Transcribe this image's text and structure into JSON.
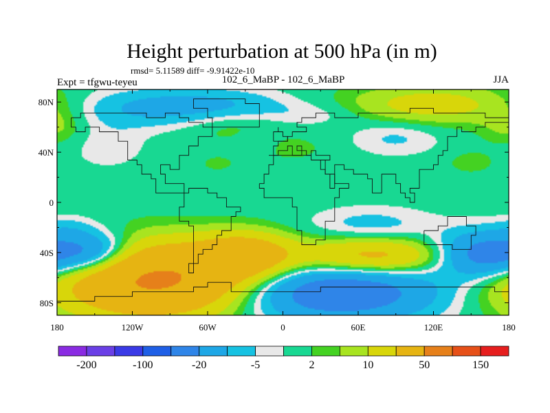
{
  "chart_data": {
    "type": "heatmap",
    "title": "Height perturbation at 500 hPa (in m)",
    "stats_text": "rmsd= 5.11589 diff= -9.91422e-10",
    "left_label": "Expt = tfgwu-teyeu",
    "center_label": "102_6_MaBP - 102_6_MaBP",
    "right_label": "JJA",
    "projection": "cylindrical equidistant",
    "x_range": [
      -180,
      180
    ],
    "y_range": [
      -90,
      90
    ],
    "x_ticks": [
      {
        "value": -180,
        "label": "180"
      },
      {
        "value": -120,
        "label": "120W"
      },
      {
        "value": -60,
        "label": "60W"
      },
      {
        "value": 0,
        "label": "0"
      },
      {
        "value": 60,
        "label": "60E"
      },
      {
        "value": 120,
        "label": "120E"
      },
      {
        "value": 180,
        "label": "180"
      }
    ],
    "y_ticks": [
      {
        "value": 80,
        "label": "80N"
      },
      {
        "value": 40,
        "label": "40N"
      },
      {
        "value": 0,
        "label": "0"
      },
      {
        "value": -40,
        "label": "40S"
      },
      {
        "value": -80,
        "label": "80S"
      }
    ],
    "colorbar": {
      "colors": [
        "#8a2be2",
        "#6a3fe6",
        "#3a3ae6",
        "#1f5fe6",
        "#2f85e8",
        "#1ea7e6",
        "#16c2e2",
        "#e8e8e8",
        "#18d892",
        "#44d222",
        "#a8e420",
        "#d8d60a",
        "#e6b412",
        "#e6801a",
        "#e65018",
        "#e61e1e"
      ],
      "labels": [
        {
          "after_box": 1,
          "text": "-200"
        },
        {
          "after_box": 3,
          "text": "-100"
        },
        {
          "after_box": 5,
          "text": "-20"
        },
        {
          "after_box": 7,
          "text": "-5"
        },
        {
          "after_box": 9,
          "text": "2"
        },
        {
          "after_box": 11,
          "text": "10"
        },
        {
          "after_box": 13,
          "text": "50"
        },
        {
          "after_box": 15,
          "text": "150"
        }
      ]
    },
    "field_blobs": [
      {
        "name": "south-pacific-high",
        "lon": -100,
        "lat": -62,
        "rlon": 55,
        "rlat": 20,
        "amp": 55
      },
      {
        "name": "south-atlantic-high",
        "lon": -30,
        "lat": -42,
        "rlon": 26,
        "rlat": 12,
        "amp": 28
      },
      {
        "name": "indian-ocean-high",
        "lon": 72,
        "lat": -43,
        "rlon": 42,
        "rlat": 10,
        "amp": 26
      },
      {
        "name": "southern-ocean-low",
        "lon": 40,
        "lat": -72,
        "rlon": 58,
        "rlat": 16,
        "amp": -32
      },
      {
        "name": "sw-pacific-low",
        "lon": 162,
        "lat": -42,
        "rlon": 28,
        "rlat": 13,
        "amp": -32
      },
      {
        "name": "se-pacific-low",
        "lon": -150,
        "lat": -41,
        "rlon": 22,
        "rlat": 12,
        "amp": -26
      },
      {
        "name": "midlat-south-low",
        "lon": 70,
        "lat": -18,
        "rlon": 35,
        "rlat": 10,
        "amp": -7
      },
      {
        "name": "east-pacific-south-low",
        "lon": -170,
        "lat": -20,
        "rlon": 15,
        "rlat": 7,
        "amp": -4
      },
      {
        "name": "north-pacific-low",
        "lon": -115,
        "lat": 75,
        "rlon": 42,
        "rlat": 11,
        "amp": -10
      },
      {
        "name": "europe-low",
        "lon": -50,
        "lat": 78,
        "rlon": 40,
        "rlat": 9,
        "amp": -9
      },
      {
        "name": "arctic-siberia-high",
        "lon": 120,
        "lat": 78,
        "rlon": 48,
        "rlat": 11,
        "amp": 14
      },
      {
        "name": "north-atlantic-high",
        "lon": -40,
        "lat": 60,
        "rlon": 26,
        "rlat": 9,
        "amp": 4
      },
      {
        "name": "asia-low",
        "lon": 90,
        "lat": 52,
        "rlon": 25,
        "rlat": 10,
        "amp": -6
      },
      {
        "name": "central-asia-low",
        "lon": 25,
        "lat": 70,
        "rlon": 28,
        "rlat": 7,
        "amp": -4
      },
      {
        "name": "mid-atlantic-low",
        "lon": -20,
        "lat": 48,
        "rlon": 12,
        "rlat": 7,
        "amp": -3.5
      },
      {
        "name": "east-europe-high",
        "lon": 5,
        "lat": 43,
        "rlon": 20,
        "rlat": 7,
        "amp": 3.5
      },
      {
        "name": "pacific-high",
        "lon": 150,
        "lat": 32,
        "rlon": 15,
        "rlat": 7,
        "amp": 3.5
      },
      {
        "name": "canada-high",
        "lon": -180,
        "lat": 60,
        "rlon": 16,
        "rlat": 10,
        "amp": 6
      },
      {
        "name": "atlantic-small-high",
        "lon": -52,
        "lat": 31,
        "rlon": 11,
        "rlat": 5,
        "amp": 3
      },
      {
        "name": "north-african-low",
        "lon": -140,
        "lat": 45,
        "rlon": 22,
        "rlat": 13,
        "amp": -4
      }
    ],
    "coastline_polygons": [
      [
        [
          -168,
          66
        ],
        [
          -160,
          70
        ],
        [
          -140,
          70
        ],
        [
          -125,
          70
        ],
        [
          -110,
          69
        ],
        [
          -95,
          70
        ],
        [
          -82,
          69
        ],
        [
          -75,
          62
        ],
        [
          -65,
          60
        ],
        [
          -56,
          52
        ],
        [
          -66,
          45
        ],
        [
          -76,
          38
        ],
        [
          -81,
          31
        ],
        [
          -82,
          25
        ],
        [
          -90,
          29
        ],
        [
          -97,
          26
        ],
        [
          -97,
          21
        ],
        [
          -93,
          16
        ],
        [
          -86,
          14
        ],
        [
          -80,
          9
        ],
        [
          -100,
          18
        ],
        [
          -106,
          23
        ],
        [
          -112,
          30
        ],
        [
          -118,
          34
        ],
        [
          -124,
          40
        ],
        [
          -124,
          48
        ],
        [
          -133,
          56
        ],
        [
          -146,
          60
        ],
        [
          -158,
          58
        ],
        [
          -166,
          61
        ]
      ],
      [
        [
          -80,
          9
        ],
        [
          -76,
          10
        ],
        [
          -66,
          11
        ],
        [
          -60,
          8
        ],
        [
          -51,
          4
        ],
        [
          -44,
          -2
        ],
        [
          -35,
          -6
        ],
        [
          -38,
          -13
        ],
        [
          -40,
          -21
        ],
        [
          -48,
          -27
        ],
        [
          -53,
          -34
        ],
        [
          -58,
          -39
        ],
        [
          -65,
          -42
        ],
        [
          -67,
          -50
        ],
        [
          -70,
          -55
        ],
        [
          -75,
          -50
        ],
        [
          -73,
          -37
        ],
        [
          -71,
          -29
        ],
        [
          -70,
          -18
        ],
        [
          -76,
          -14
        ],
        [
          -81,
          -5
        ],
        [
          -80,
          1
        ]
      ],
      [
        [
          -17,
          15
        ],
        [
          -16,
          22
        ],
        [
          -10,
          30
        ],
        [
          -6,
          36
        ],
        [
          10,
          37
        ],
        [
          22,
          33
        ],
        [
          32,
          31
        ],
        [
          35,
          24
        ],
        [
          42,
          15
        ],
        [
          51,
          12
        ],
        [
          45,
          2
        ],
        [
          40,
          -5
        ],
        [
          40,
          -15
        ],
        [
          35,
          -24
        ],
        [
          32,
          -29
        ],
        [
          26,
          -34
        ],
        [
          18,
          -34
        ],
        [
          14,
          -24
        ],
        [
          12,
          -13
        ],
        [
          12,
          -5
        ],
        [
          9,
          4
        ],
        [
          0,
          5
        ],
        [
          -8,
          5
        ],
        [
          -15,
          10
        ]
      ],
      [
        [
          -10,
          36
        ],
        [
          -9,
          44
        ],
        [
          -2,
          44
        ],
        [
          -5,
          48
        ],
        [
          2,
          51
        ],
        [
          5,
          54
        ],
        [
          8,
          57
        ],
        [
          12,
          56
        ],
        [
          18,
          60
        ],
        [
          10,
          62
        ],
        [
          15,
          68
        ],
        [
          25,
          71
        ],
        [
          40,
          68
        ],
        [
          60,
          70
        ],
        [
          80,
          73
        ],
        [
          100,
          76
        ],
        [
          120,
          73
        ],
        [
          140,
          72
        ],
        [
          160,
          69
        ],
        [
          180,
          65
        ],
        [
          180,
          62
        ],
        [
          163,
          60
        ],
        [
          155,
          58
        ],
        [
          143,
          59
        ],
        [
          140,
          53
        ],
        [
          132,
          43
        ],
        [
          127,
          38
        ],
        [
          122,
          31
        ],
        [
          120,
          25
        ],
        [
          110,
          20
        ],
        [
          107,
          10
        ],
        [
          100,
          7
        ],
        [
          104,
          1
        ],
        [
          100,
          3
        ],
        [
          98,
          9
        ],
        [
          95,
          16
        ],
        [
          90,
          22
        ],
        [
          86,
          21
        ],
        [
          80,
          15
        ],
        [
          77,
          8
        ],
        [
          73,
          18
        ],
        [
          67,
          24
        ],
        [
          57,
          25
        ],
        [
          52,
          27
        ],
        [
          48,
          30
        ],
        [
          43,
          13
        ],
        [
          38,
          21
        ],
        [
          34,
          28
        ],
        [
          30,
          34
        ],
        [
          36,
          36
        ],
        [
          26,
          40
        ],
        [
          24,
          36
        ],
        [
          20,
          40
        ],
        [
          12,
          44
        ],
        [
          16,
          38
        ],
        [
          8,
          44
        ],
        [
          3,
          43
        ],
        [
          -5,
          36
        ]
      ],
      [
        [
          114,
          -22
        ],
        [
          122,
          -18
        ],
        [
          130,
          -12
        ],
        [
          137,
          -12
        ],
        [
          142,
          -11
        ],
        [
          146,
          -19
        ],
        [
          153,
          -26
        ],
        [
          150,
          -37
        ],
        [
          140,
          -38
        ],
        [
          135,
          -35
        ],
        [
          128,
          -32
        ],
        [
          116,
          -35
        ],
        [
          114,
          -28
        ]
      ],
      [
        [
          -60,
          -64
        ],
        [
          -40,
          -72
        ],
        [
          -20,
          -72
        ],
        [
          0,
          -70
        ],
        [
          30,
          -69
        ],
        [
          60,
          -67
        ],
        [
          90,
          -66
        ],
        [
          120,
          -66
        ],
        [
          150,
          -68
        ],
        [
          170,
          -72
        ],
        [
          180,
          -78
        ],
        [
          180,
          -90
        ],
        [
          -180,
          -90
        ],
        [
          -180,
          -78
        ],
        [
          -150,
          -76
        ],
        [
          -120,
          -73
        ],
        [
          -90,
          -72
        ],
        [
          -70,
          -68
        ]
      ],
      [
        [
          -55,
          60
        ],
        [
          -45,
          60
        ],
        [
          -20,
          70
        ],
        [
          -18,
          78
        ],
        [
          -30,
          83
        ],
        [
          -60,
          82
        ],
        [
          -70,
          76
        ],
        [
          -60,
          68
        ]
      ],
      [
        [
          -6,
          50
        ],
        [
          2,
          51
        ],
        [
          0,
          56
        ],
        [
          -3,
          59
        ],
        [
          -5,
          56
        ]
      ]
    ]
  }
}
